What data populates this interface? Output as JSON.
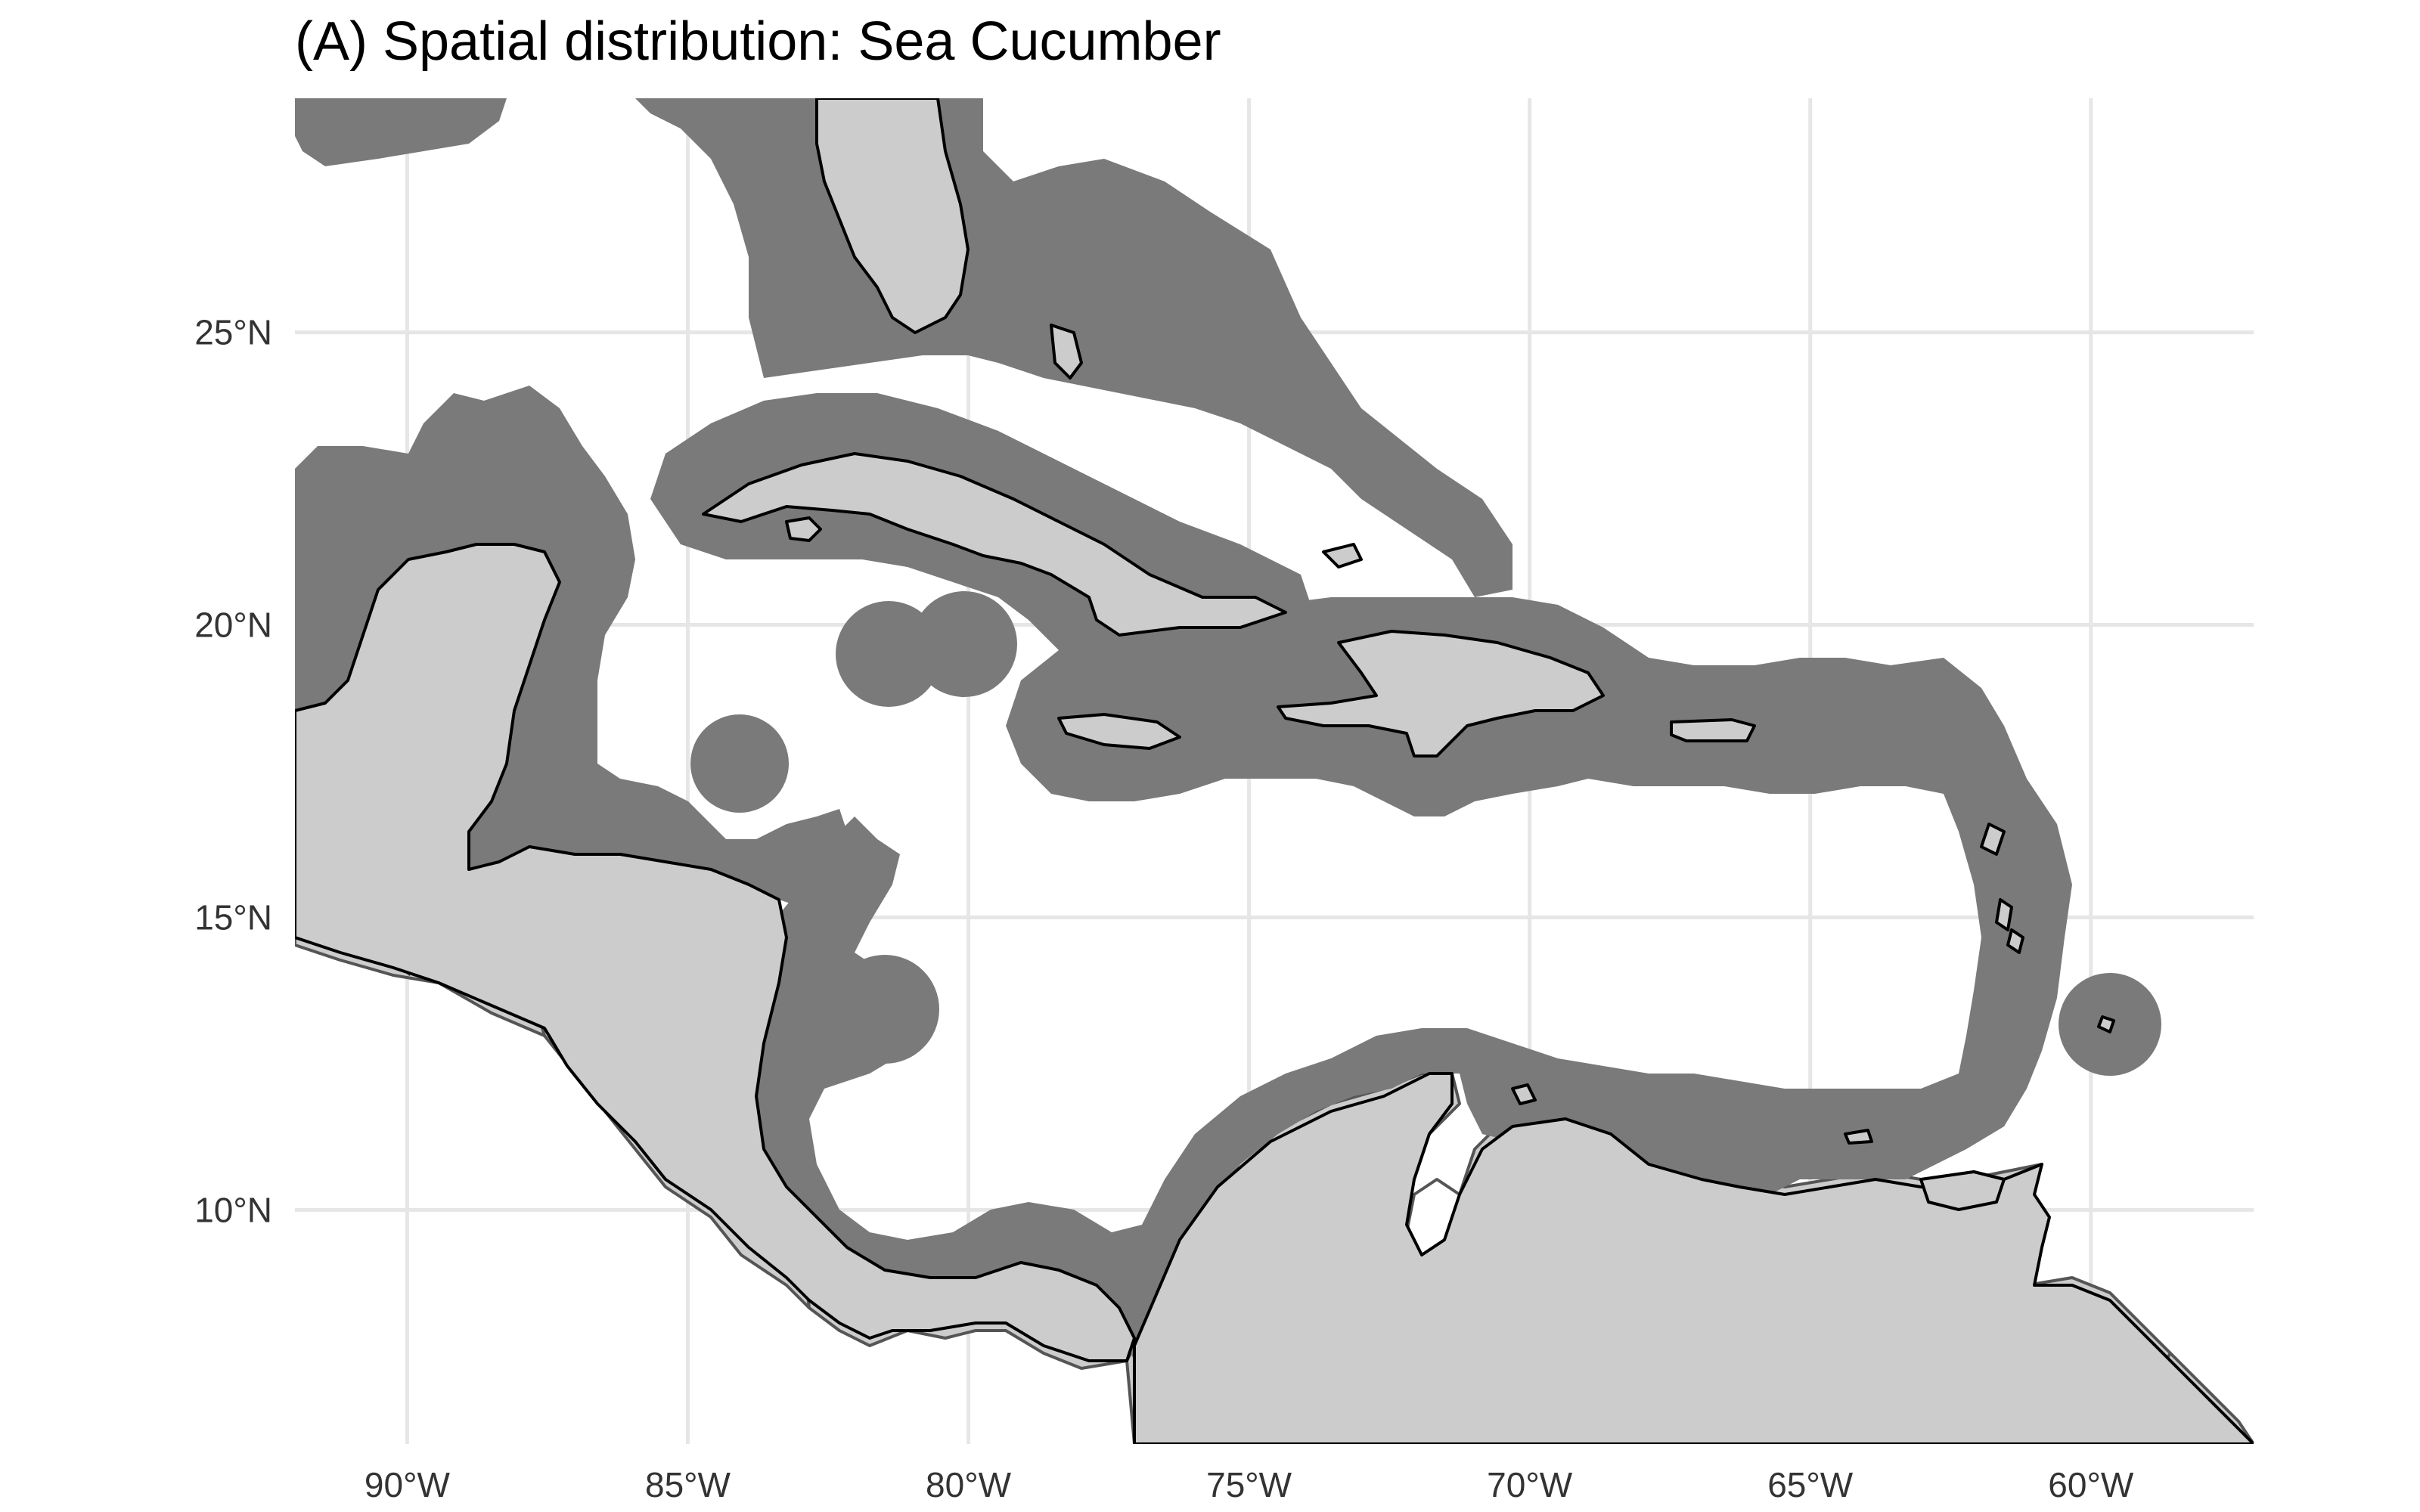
{
  "title": "(A) Spatial distribution: Sea Cucumber",
  "map": {
    "projection": "plate-carree",
    "lon_range": [
      -92,
      -57.1
    ],
    "lat_range": [
      6,
      29
    ],
    "lon_ticks": [
      {
        "value": -90,
        "label": "90°W"
      },
      {
        "value": -85,
        "label": "85°W"
      },
      {
        "value": -80,
        "label": "80°W"
      },
      {
        "value": -75,
        "label": "75°W"
      },
      {
        "value": -70,
        "label": "70°W"
      },
      {
        "value": -65,
        "label": "65°W"
      },
      {
        "value": -60,
        "label": "60°W"
      }
    ],
    "lat_ticks": [
      {
        "value": 25,
        "label": "25°N"
      },
      {
        "value": 20,
        "label": "20°N"
      },
      {
        "value": 15,
        "label": "15°N"
      },
      {
        "value": 10,
        "label": "10°N"
      }
    ],
    "grid": true,
    "layers": [
      {
        "name": "land",
        "fill": "#cccccc",
        "stroke": "#555555"
      },
      {
        "name": "sea-cucumber-range",
        "fill": "#7a7a7a",
        "stroke": "#000000"
      }
    ]
  },
  "colors": {
    "background": "#ffffff",
    "grid": "#e6e6e6",
    "land": "#cccccc",
    "distribution": "#7a7a7a",
    "coast": "#000000",
    "border": "#555555"
  }
}
